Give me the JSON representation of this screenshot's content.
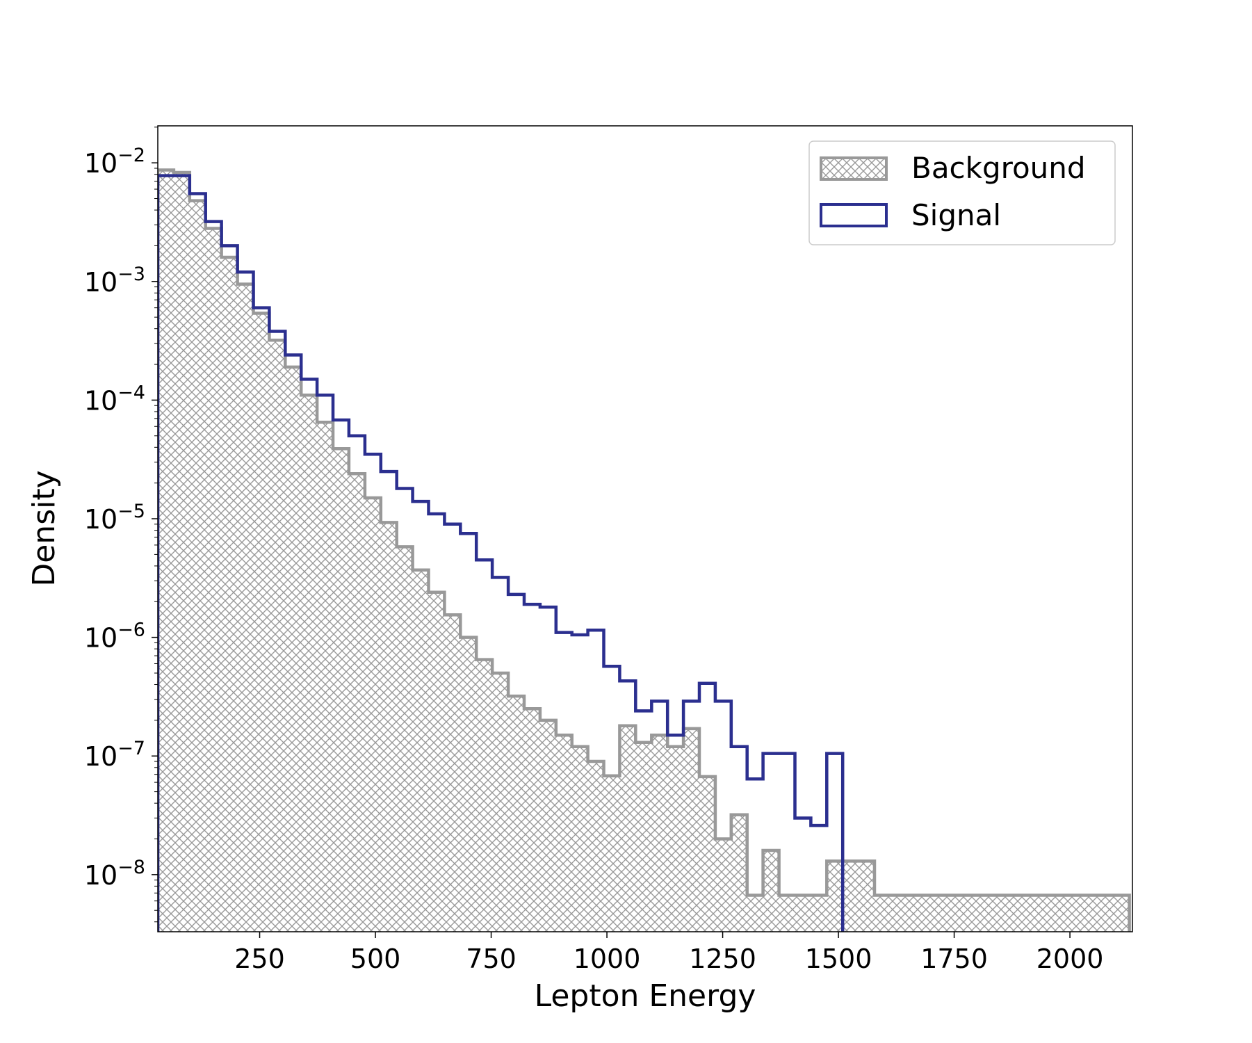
{
  "chart_data": {
    "type": "histogram",
    "xlabel": "Lepton Energy",
    "ylabel": "Density",
    "xlim": [
      30,
      2135
    ],
    "ylim": [
      3.3e-09,
      0.0205
    ],
    "yscale": "log",
    "grid": false,
    "legend_position": "top-right",
    "bin_edges_start": 30,
    "bin_width": 34.4,
    "x_ticks": [
      250,
      500,
      750,
      1000,
      1250,
      1500,
      1750,
      2000
    ],
    "y_ticks": [
      {
        "value": 0.01,
        "base": "10",
        "exp": "−2"
      },
      {
        "value": 0.001,
        "base": "10",
        "exp": "−3"
      },
      {
        "value": 0.0001,
        "base": "10",
        "exp": "−4"
      },
      {
        "value": 1e-05,
        "base": "10",
        "exp": "−5"
      },
      {
        "value": 1e-06,
        "base": "10",
        "exp": "−6"
      },
      {
        "value": 1e-07,
        "base": "10",
        "exp": "−7"
      },
      {
        "value": 1e-08,
        "base": "10",
        "exp": "−8"
      }
    ],
    "series": [
      {
        "name": "Background",
        "style": "hatched",
        "color": "#999999",
        "values": [
          0.0087,
          0.0083,
          0.0048,
          0.0028,
          0.0016,
          0.00095,
          0.00054,
          0.00032,
          0.00019,
          0.00011,
          6.5e-05,
          3.9e-05,
          2.4e-05,
          1.5e-05,
          9.3e-06,
          5.8e-06,
          3.7e-06,
          2.4e-06,
          1.55e-06,
          1e-06,
          6.5e-07,
          5e-07,
          3.2e-07,
          2.5e-07,
          2e-07,
          1.5e-07,
          1.2e-07,
          9e-08,
          6.8e-08,
          1.8e-07,
          1.3e-07,
          1.5e-07,
          1.2e-07,
          1.7e-07,
          6.7e-08,
          2e-08,
          3.2e-08,
          6.7e-09,
          1.6e-08,
          6.7e-09,
          6.7e-09,
          6.7e-09,
          1.3e-08,
          1.3e-08,
          1.3e-08,
          6.7e-09,
          6.7e-09,
          6.7e-09,
          6.7e-09,
          6.7e-09,
          6.7e-09,
          6.7e-09,
          6.7e-09,
          6.7e-09,
          6.7e-09,
          6.7e-09,
          6.7e-09,
          6.7e-09,
          6.7e-09,
          6.7e-09,
          6.7e-09
        ],
        "values_note_unused": []
      },
      {
        "name": "Signal",
        "style": "step",
        "color": "#2b2f8f",
        "values": [
          0.0078,
          0.0078,
          0.0055,
          0.0032,
          0.002,
          0.0012,
          0.0006,
          0.00038,
          0.00024,
          0.00015,
          0.00011,
          6.8e-05,
          5e-05,
          3.5e-05,
          2.5e-05,
          1.8e-05,
          1.4e-05,
          1.1e-05,
          9e-06,
          7.5e-06,
          4.5e-06,
          3.2e-06,
          2.3e-06,
          1.9e-06,
          1.8e-06,
          1.1e-06,
          1.05e-06,
          1.15e-06,
          5.7e-07,
          4.3e-07,
          2.4e-07,
          2.9e-07,
          1.5e-07,
          2.9e-07,
          4.1e-07,
          2.9e-07,
          1.2e-07,
          6.4e-08,
          1.05e-07,
          1.05e-07,
          3e-08,
          2.6e-08,
          1.05e-07
        ]
      }
    ]
  },
  "legend": {
    "background_label": "Background",
    "signal_label": "Signal"
  }
}
